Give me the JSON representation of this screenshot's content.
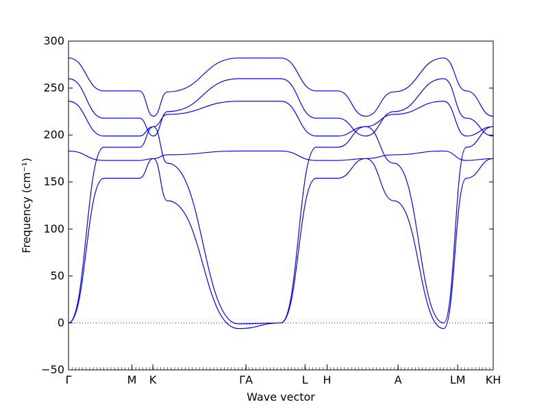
{
  "chart_data": {
    "type": "line",
    "title": "",
    "xlabel": "Wave vector",
    "ylabel": "Frequency (cm⁻¹)",
    "ylim": [
      -50,
      300
    ],
    "yticks": [
      -50,
      0,
      50,
      100,
      150,
      200,
      250,
      300
    ],
    "xticks": [
      "Γ",
      "M",
      "K",
      "ΓA",
      "L",
      "H",
      "A",
      "LM",
      "KH"
    ],
    "grid": false,
    "reference_line": {
      "y": 0,
      "style": "dotted"
    },
    "series_color": "#0000ff",
    "branches": [
      {
        "name": "",
        "x": [
          0,
          0.5,
          1,
          1.2,
          1.4,
          2.4,
          3,
          3.5,
          3.8,
          4.2,
          4.6,
          5.3,
          5.62,
          6.0
        ],
        "y": [
          282,
          247,
          247,
          220,
          246,
          282,
          282,
          247,
          247,
          220,
          246,
          282,
          247,
          220
        ]
      },
      {
        "name": "",
        "x": [
          0,
          0.5,
          1,
          1.2,
          1.4,
          2.4,
          3,
          3.5,
          3.8,
          4.2,
          4.6,
          5.3,
          5.62,
          6.0
        ],
        "y": [
          260,
          218,
          218,
          199,
          225,
          260,
          260,
          218,
          218,
          199,
          225,
          260,
          218,
          199
        ]
      },
      {
        "name": "",
        "x": [
          0,
          0.5,
          1,
          1.2,
          1.4,
          2.4,
          3,
          3.5,
          3.8,
          4.2,
          4.6,
          5.3,
          5.62,
          6.0
        ],
        "y": [
          236,
          199,
          199,
          209,
          222,
          236,
          236,
          199,
          199,
          209,
          222,
          236,
          199,
          209
        ]
      },
      {
        "name": "",
        "x": [
          0,
          0.5,
          1,
          1.2,
          1.4,
          2.4,
          3,
          3.5,
          3.8,
          4.2,
          4.6,
          5.3,
          5.62,
          6.0
        ],
        "y": [
          183,
          173,
          173,
          175,
          179,
          183,
          183,
          173,
          173,
          175,
          179,
          183,
          173,
          175
        ]
      },
      {
        "name": "",
        "x": [
          0,
          0.5,
          1,
          1.2,
          1.4,
          2.4,
          3,
          3.5,
          3.8,
          4.2,
          4.6,
          5.3,
          5.62,
          6.0
        ],
        "y": [
          0,
          187,
          187,
          209,
          170,
          -1,
          0,
          187,
          187,
          209,
          170,
          0,
          187,
          209
        ]
      },
      {
        "name": "",
        "x": [
          0,
          0.5,
          1,
          1.2,
          1.4,
          2.4,
          3,
          3.5,
          3.8,
          4.2,
          4.6,
          5.3,
          5.62,
          6.0
        ],
        "y": [
          0,
          154,
          154,
          175,
          130,
          -6,
          0,
          154,
          154,
          175,
          130,
          -6,
          154,
          175
        ]
      }
    ]
  }
}
